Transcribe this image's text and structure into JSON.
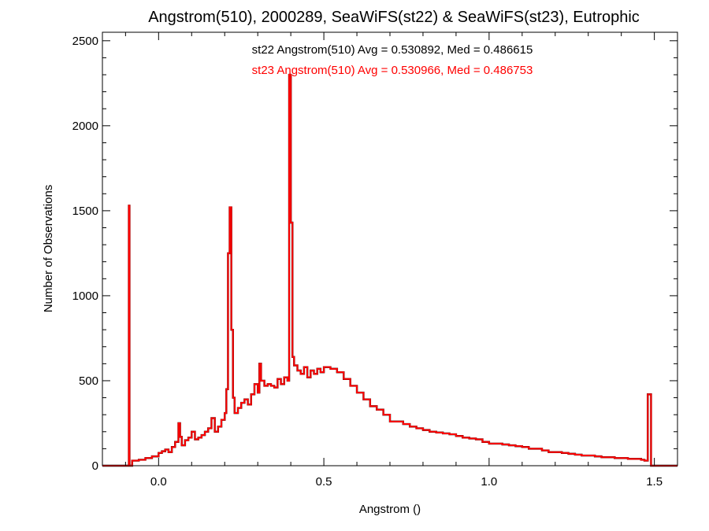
{
  "chart_data": {
    "type": "line",
    "title": "Angstrom(510), 2000289, SeaWiFS(st22) & SeaWiFS(st23), Eutrophic",
    "xlabel": "Angstrom ()",
    "ylabel": "Number of Observations",
    "xlim": [
      -0.17,
      1.57
    ],
    "ylim": [
      0,
      2550
    ],
    "xticks": [
      0.0,
      0.5,
      1.0,
      1.5
    ],
    "xtick_labels": [
      "0.0",
      "0.5",
      "1.0",
      "1.5"
    ],
    "yticks": [
      0,
      500,
      1000,
      1500,
      2000,
      2500
    ],
    "ytick_labels": [
      "0",
      "500",
      "1000",
      "1500",
      "2000",
      "2500"
    ],
    "grid": false,
    "annotations": [
      {
        "text": "st22 Angstrom(510) Avg = 0.530892, Med = 0.486615",
        "color": "#000000"
      },
      {
        "text": "st23 Angstrom(510) Avg = 0.530966, Med = 0.486753",
        "color": "#ff0000"
      }
    ],
    "series": [
      {
        "color": "#000000",
        "step": true,
        "x": [
          -0.17,
          -0.09,
          -0.088,
          -0.08,
          -0.06,
          -0.04,
          -0.02,
          0.0,
          0.01,
          0.02,
          0.03,
          0.04,
          0.05,
          0.06,
          0.065,
          0.07,
          0.08,
          0.09,
          0.1,
          0.11,
          0.12,
          0.13,
          0.14,
          0.15,
          0.16,
          0.17,
          0.18,
          0.19,
          0.2,
          0.205,
          0.21,
          0.215,
          0.22,
          0.225,
          0.23,
          0.24,
          0.25,
          0.26,
          0.27,
          0.28,
          0.29,
          0.3,
          0.305,
          0.31,
          0.32,
          0.33,
          0.34,
          0.35,
          0.36,
          0.37,
          0.38,
          0.39,
          0.395,
          0.4,
          0.405,
          0.41,
          0.42,
          0.43,
          0.44,
          0.45,
          0.46,
          0.47,
          0.48,
          0.49,
          0.5,
          0.52,
          0.54,
          0.56,
          0.58,
          0.6,
          0.62,
          0.64,
          0.66,
          0.68,
          0.7,
          0.72,
          0.74,
          0.76,
          0.78,
          0.8,
          0.82,
          0.84,
          0.86,
          0.88,
          0.9,
          0.92,
          0.94,
          0.96,
          0.98,
          1.0,
          1.02,
          1.04,
          1.06,
          1.08,
          1.1,
          1.12,
          1.14,
          1.16,
          1.18,
          1.2,
          1.22,
          1.24,
          1.26,
          1.28,
          1.3,
          1.32,
          1.34,
          1.36,
          1.38,
          1.4,
          1.42,
          1.44,
          1.46,
          1.47,
          1.48,
          1.49,
          1.5
        ],
        "y": [
          0,
          1530,
          0,
          30,
          35,
          45,
          55,
          75,
          85,
          95,
          80,
          110,
          140,
          250,
          170,
          120,
          150,
          165,
          200,
          155,
          165,
          180,
          200,
          220,
          280,
          200,
          230,
          270,
          310,
          450,
          1250,
          1520,
          800,
          400,
          310,
          340,
          370,
          390,
          360,
          420,
          480,
          430,
          600,
          500,
          470,
          480,
          470,
          460,
          510,
          480,
          520,
          500,
          2300,
          1430,
          640,
          590,
          560,
          540,
          580,
          520,
          560,
          540,
          570,
          550,
          580,
          570,
          550,
          510,
          470,
          430,
          390,
          350,
          330,
          300,
          260,
          260,
          245,
          230,
          220,
          210,
          200,
          195,
          190,
          185,
          175,
          165,
          160,
          155,
          140,
          130,
          130,
          125,
          120,
          115,
          110,
          100,
          100,
          90,
          80,
          80,
          75,
          70,
          65,
          60,
          60,
          55,
          50,
          50,
          45,
          45,
          40,
          40,
          35,
          30,
          420,
          0,
          0
        ]
      },
      {
        "color": "#ff0000",
        "step": true,
        "x": [
          -0.17,
          -0.09,
          -0.088,
          -0.08,
          -0.06,
          -0.04,
          -0.02,
          0.0,
          0.01,
          0.02,
          0.03,
          0.04,
          0.05,
          0.06,
          0.065,
          0.07,
          0.08,
          0.09,
          0.1,
          0.11,
          0.12,
          0.13,
          0.14,
          0.15,
          0.16,
          0.17,
          0.18,
          0.19,
          0.2,
          0.205,
          0.21,
          0.215,
          0.22,
          0.225,
          0.23,
          0.24,
          0.25,
          0.26,
          0.27,
          0.28,
          0.29,
          0.3,
          0.305,
          0.31,
          0.32,
          0.33,
          0.34,
          0.35,
          0.36,
          0.37,
          0.38,
          0.39,
          0.395,
          0.4,
          0.405,
          0.41,
          0.42,
          0.43,
          0.44,
          0.45,
          0.46,
          0.47,
          0.48,
          0.49,
          0.5,
          0.52,
          0.54,
          0.56,
          0.58,
          0.6,
          0.62,
          0.64,
          0.66,
          0.68,
          0.7,
          0.72,
          0.74,
          0.76,
          0.78,
          0.8,
          0.82,
          0.84,
          0.86,
          0.88,
          0.9,
          0.92,
          0.94,
          0.96,
          0.98,
          1.0,
          1.02,
          1.04,
          1.06,
          1.08,
          1.1,
          1.12,
          1.14,
          1.16,
          1.18,
          1.2,
          1.22,
          1.24,
          1.26,
          1.28,
          1.3,
          1.32,
          1.34,
          1.36,
          1.38,
          1.4,
          1.42,
          1.44,
          1.46,
          1.47,
          1.48,
          1.49,
          1.5
        ],
        "y": [
          0,
          1530,
          0,
          30,
          35,
          45,
          55,
          75,
          85,
          95,
          80,
          110,
          140,
          250,
          170,
          120,
          150,
          165,
          200,
          155,
          165,
          180,
          200,
          220,
          280,
          200,
          230,
          270,
          310,
          450,
          1250,
          1520,
          800,
          400,
          310,
          340,
          370,
          390,
          360,
          420,
          480,
          430,
          600,
          500,
          470,
          480,
          470,
          460,
          510,
          480,
          520,
          500,
          2300,
          1430,
          640,
          590,
          560,
          540,
          580,
          520,
          560,
          540,
          570,
          550,
          580,
          570,
          550,
          510,
          470,
          430,
          390,
          350,
          330,
          300,
          260,
          260,
          245,
          230,
          220,
          210,
          200,
          195,
          190,
          185,
          175,
          165,
          160,
          155,
          140,
          130,
          130,
          125,
          120,
          115,
          110,
          100,
          100,
          90,
          80,
          80,
          75,
          70,
          65,
          60,
          60,
          55,
          50,
          50,
          45,
          45,
          40,
          40,
          35,
          30,
          420,
          0,
          0
        ]
      }
    ]
  }
}
